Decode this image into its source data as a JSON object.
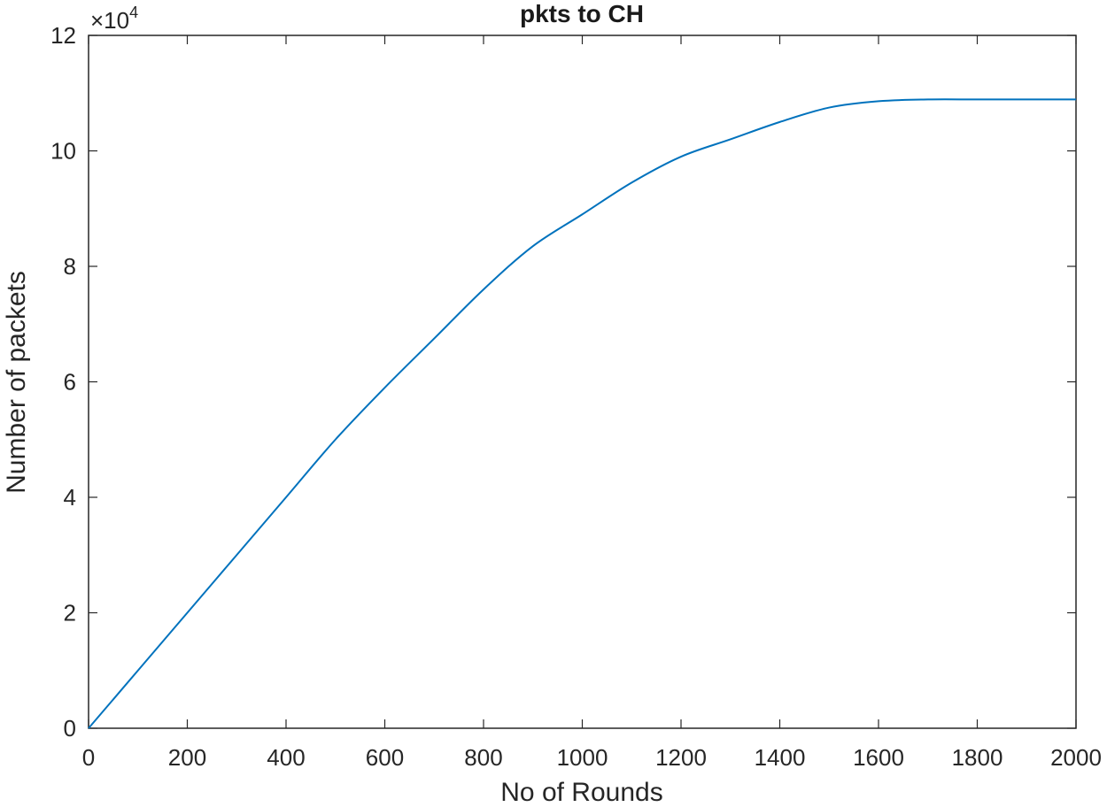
{
  "chart_data": {
    "type": "line",
    "title": "pkts to CH",
    "xlabel": "No of Rounds",
    "ylabel": "Number of packets",
    "xlim": [
      0,
      2000
    ],
    "ylim": [
      0,
      120000
    ],
    "x_ticks": [
      "0",
      "200",
      "400",
      "600",
      "800",
      "1000",
      "1200",
      "1400",
      "1600",
      "1800",
      "2000"
    ],
    "y_ticks": [
      "0",
      "2",
      "4",
      "6",
      "8",
      "10",
      "12"
    ],
    "y_exponent": {
      "base": "×10",
      "power": "4"
    },
    "grid": false,
    "line_color": "#0072BD",
    "series": [
      {
        "x": [
          0,
          100,
          200,
          300,
          400,
          500,
          600,
          700,
          800,
          900,
          1000,
          1100,
          1200,
          1300,
          1400,
          1500,
          1600,
          1700,
          1800,
          1900,
          2000
        ],
        "values": [
          0,
          10000,
          20000,
          30000,
          40000,
          50000,
          59000,
          67500,
          76000,
          83500,
          89000,
          94500,
          99000,
          102000,
          105000,
          107500,
          108600,
          108900,
          108900,
          108900,
          108900
        ]
      }
    ]
  }
}
